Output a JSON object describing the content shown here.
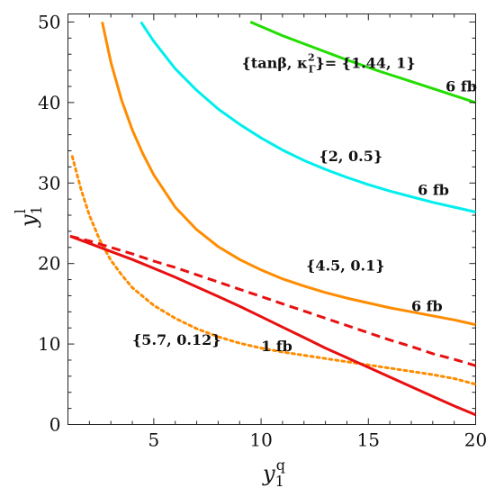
{
  "chart_data": {
    "type": "line",
    "title": "",
    "xlabel": {
      "main": "y",
      "sub": "1",
      "sup": "q"
    },
    "ylabel": {
      "main": "y",
      "sub": "1",
      "sup": "l"
    },
    "xlim": [
      1,
      20
    ],
    "ylim": [
      0,
      51
    ],
    "xticks": [
      5,
      10,
      15,
      20
    ],
    "yticks": [
      0,
      10,
      20,
      30,
      40,
      50
    ],
    "grid": false,
    "legend": "none",
    "series": [
      {
        "color": "#22dd00",
        "style": "solid",
        "x": [
          9.5,
          11,
          12.5,
          14,
          15.5,
          17,
          18.5,
          20
        ],
        "y": [
          50,
          48.3,
          46.8,
          45.3,
          43.9,
          42.6,
          41.3,
          40
        ]
      },
      {
        "color": "#00eeee",
        "style": "solid",
        "x": [
          4.4,
          5,
          6,
          7,
          8,
          9,
          10,
          11,
          12,
          13,
          14,
          15,
          16,
          17,
          18,
          19,
          20
        ],
        "y": [
          50,
          47.6,
          44.2,
          41.5,
          39.2,
          37.3,
          35.6,
          34.1,
          32.8,
          31.7,
          30.7,
          29.8,
          29.0,
          28.3,
          27.6,
          27.0,
          26.4
        ]
      },
      {
        "color": "#ff8c00",
        "style": "solid",
        "x": [
          2.6,
          3,
          3.5,
          4,
          4.5,
          5,
          6,
          7,
          8,
          9,
          10,
          11,
          12,
          13,
          14,
          15,
          16,
          17,
          18,
          19,
          20
        ],
        "y": [
          50,
          45,
          40.3,
          36.6,
          33.6,
          31.0,
          27.0,
          24.2,
          22.1,
          20.5,
          19.2,
          18.1,
          17.2,
          16.4,
          15.7,
          15.1,
          14.5,
          14.0,
          13.5,
          13.0,
          12.4
        ]
      },
      {
        "color": "#ff8c00",
        "style": "dotted",
        "x": [
          1.2,
          1.6,
          2.0,
          2.5,
          3,
          3.5,
          4,
          5,
          6,
          7,
          8,
          9,
          10,
          11,
          12,
          13,
          14,
          15,
          16,
          17,
          18,
          19,
          20
        ],
        "y": [
          33.3,
          29.3,
          26.0,
          22.8,
          20.4,
          18.6,
          17.0,
          14.8,
          13.2,
          11.9,
          10.9,
          10.1,
          9.5,
          9.0,
          8.6,
          8.2,
          7.8,
          7.4,
          7.0,
          6.6,
          6.2,
          5.7,
          5.0
        ]
      },
      {
        "color": "#e81010",
        "style": "dashed",
        "x": [
          1.1,
          2,
          3,
          4,
          5,
          6,
          7,
          8,
          9,
          10,
          11,
          12,
          13,
          14,
          15,
          16,
          17,
          18,
          19,
          20
        ],
        "y": [
          23.4,
          22.8,
          22.0,
          21.2,
          20.3,
          19.5,
          18.6,
          17.7,
          16.8,
          15.9,
          15.0,
          14.1,
          13.2,
          12.3,
          11.4,
          10.5,
          9.7,
          8.8,
          8.1,
          7.3
        ]
      },
      {
        "color": "#e81010",
        "style": "solid",
        "x": [
          1.1,
          2,
          3,
          4,
          5,
          6,
          7,
          8,
          9,
          10,
          11,
          12,
          13,
          14,
          15,
          16,
          17,
          18,
          19,
          20
        ],
        "y": [
          23.4,
          22.5,
          21.5,
          20.5,
          19.4,
          18.3,
          17.1,
          15.9,
          14.7,
          13.4,
          12.1,
          10.8,
          9.5,
          8.3,
          7.1,
          5.9,
          4.7,
          3.5,
          2.3,
          1.2
        ]
      }
    ],
    "annotations": [
      {
        "text": "{tanβ, κ",
        "sup": "2",
        "sub": "Γ",
        "tail": "}= {1.44, 1}",
        "x": 9.1,
        "y": 44.3
      },
      {
        "text": "6 fb",
        "x": 18.6,
        "y": 41.4
      },
      {
        "text": "{2, 0.5}",
        "x": 12.7,
        "y": 32.7
      },
      {
        "text": "6 fb",
        "x": 17.3,
        "y": 28.5
      },
      {
        "text": "{4.5, 0.1}",
        "x": 12.1,
        "y": 19.1
      },
      {
        "text": "6 fb",
        "x": 17.0,
        "y": 14.1
      },
      {
        "text": "{5.7, 0.12}",
        "x": 4.0,
        "y": 9.9
      },
      {
        "text": "1 fb",
        "x": 10.0,
        "y": 9.1
      }
    ]
  }
}
